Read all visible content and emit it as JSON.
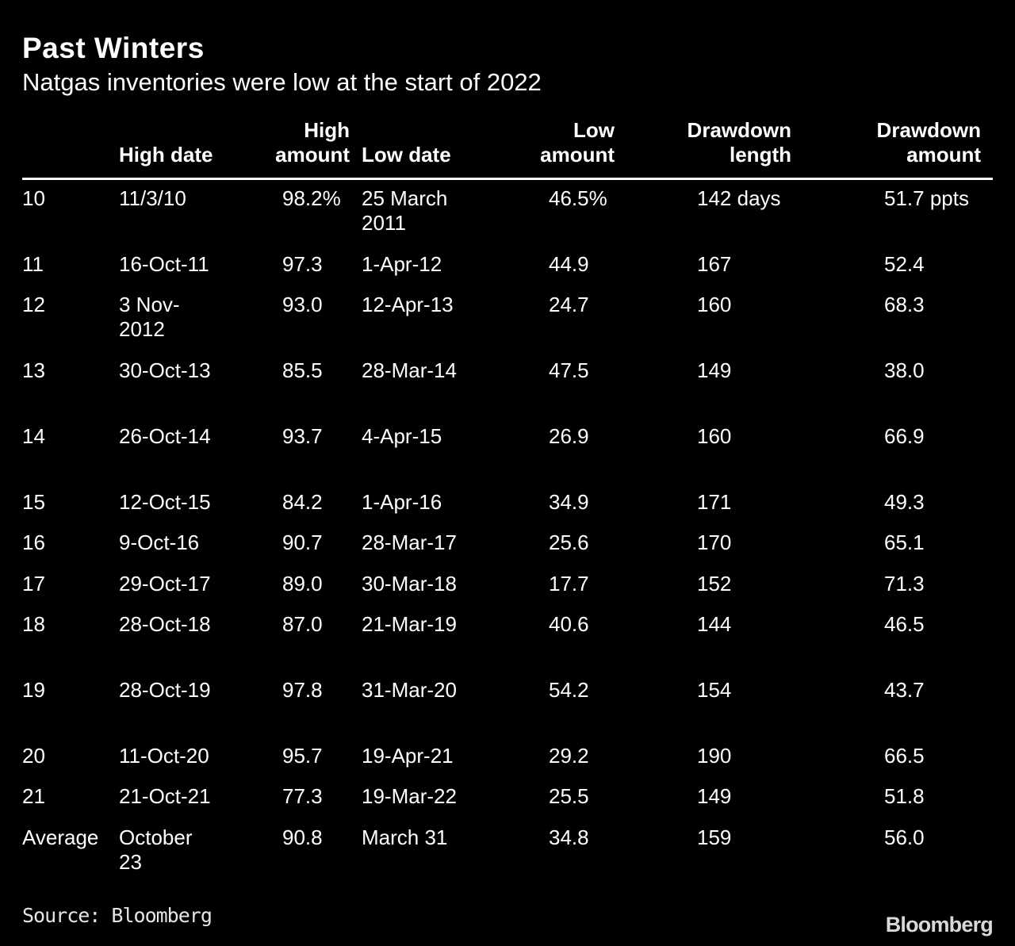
{
  "title": "Past Winters",
  "subtitle": "Natgas inventories were low at the start of 2022",
  "source": "Source: Bloomberg",
  "brand": "Bloomberg",
  "colors": {
    "background": "#000000",
    "text": "#ffffff"
  },
  "chart_data": {
    "type": "table",
    "title": "Past Winters",
    "subtitle": "Natgas inventories were low at the start of 2022",
    "columns": [
      "",
      "High date",
      "High\namount",
      "Low date",
      "Low\namount",
      "Drawdown\nlength",
      "Drawdown\namount"
    ],
    "rows": [
      [
        "10",
        "11/3/10",
        "98.2%",
        "25 March 2011",
        "46.5%",
        "142 days",
        "51.7 ppts"
      ],
      [
        "11",
        "16-Oct-11",
        "97.3",
        "1-Apr-12",
        "44.9",
        "167",
        "52.4"
      ],
      [
        "12",
        "3 Nov-2012",
        "93.0",
        "12-Apr-13",
        "24.7",
        "160",
        "68.3"
      ],
      [
        "13",
        "30-Oct-13",
        "85.5",
        "28-Mar-14",
        "47.5",
        "149",
        "38.0"
      ],
      [
        "14",
        "26-Oct-14",
        "93.7",
        "4-Apr-15",
        "26.9",
        "160",
        "66.9"
      ],
      [
        "15",
        "12-Oct-15",
        "84.2",
        "1-Apr-16",
        "34.9",
        "171",
        "49.3"
      ],
      [
        "16",
        "9-Oct-16",
        "90.7",
        "28-Mar-17",
        "25.6",
        "170",
        "65.1"
      ],
      [
        "17",
        "29-Oct-17",
        "89.0",
        "30-Mar-18",
        "17.7",
        "152",
        "71.3"
      ],
      [
        "18",
        "28-Oct-18",
        "87.0",
        "21-Mar-19",
        "40.6",
        "144",
        "46.5"
      ],
      [
        "19",
        "28-Oct-19",
        "97.8",
        "31-Mar-20",
        "54.2",
        "154",
        "43.7"
      ],
      [
        "20",
        "11-Oct-20",
        "95.7",
        "19-Apr-21",
        "29.2",
        "190",
        "66.5"
      ],
      [
        "21",
        "21-Oct-21",
        "77.3",
        "19-Mar-22",
        "25.5",
        "149",
        "51.8"
      ],
      [
        "Average",
        "October 23",
        "90.8",
        "March 31",
        "34.8",
        "159",
        "56.0"
      ]
    ]
  }
}
